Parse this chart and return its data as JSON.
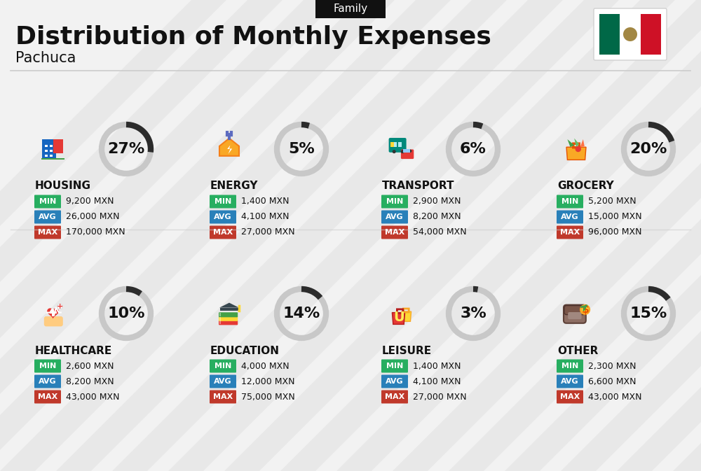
{
  "title": "Distribution of Monthly Expenses",
  "subtitle": "Family",
  "city": "Pachuca",
  "background_color": "#f2f2f2",
  "categories": [
    {
      "name": "HOUSING",
      "percent": 27,
      "min": "9,200 MXN",
      "avg": "26,000 MXN",
      "max": "170,000 MXN",
      "row": 0,
      "col": 0
    },
    {
      "name": "ENERGY",
      "percent": 5,
      "min": "1,400 MXN",
      "avg": "4,100 MXN",
      "max": "27,000 MXN",
      "row": 0,
      "col": 1
    },
    {
      "name": "TRANSPORT",
      "percent": 6,
      "min": "2,900 MXN",
      "avg": "8,200 MXN",
      "max": "54,000 MXN",
      "row": 0,
      "col": 2
    },
    {
      "name": "GROCERY",
      "percent": 20,
      "min": "5,200 MXN",
      "avg": "15,000 MXN",
      "max": "96,000 MXN",
      "row": 0,
      "col": 3
    },
    {
      "name": "HEALTHCARE",
      "percent": 10,
      "min": "2,600 MXN",
      "avg": "8,200 MXN",
      "max": "43,000 MXN",
      "row": 1,
      "col": 0
    },
    {
      "name": "EDUCATION",
      "percent": 14,
      "min": "4,000 MXN",
      "avg": "12,000 MXN",
      "max": "75,000 MXN",
      "row": 1,
      "col": 1
    },
    {
      "name": "LEISURE",
      "percent": 3,
      "min": "1,400 MXN",
      "avg": "4,100 MXN",
      "max": "27,000 MXN",
      "row": 1,
      "col": 2
    },
    {
      "name": "OTHER",
      "percent": 15,
      "min": "2,300 MXN",
      "avg": "6,600 MXN",
      "max": "43,000 MXN",
      "row": 1,
      "col": 3
    }
  ],
  "min_color": "#27ae60",
  "avg_color": "#2980b9",
  "max_color": "#c0392b",
  "text_color": "#111111",
  "arc_dark": "#2c2c2c",
  "arc_light": "#c8c8c8",
  "title_fontsize": 26,
  "subtitle_fontsize": 11,
  "city_fontsize": 15,
  "category_fontsize": 11,
  "value_fontsize": 9.5,
  "percent_fontsize": 16
}
